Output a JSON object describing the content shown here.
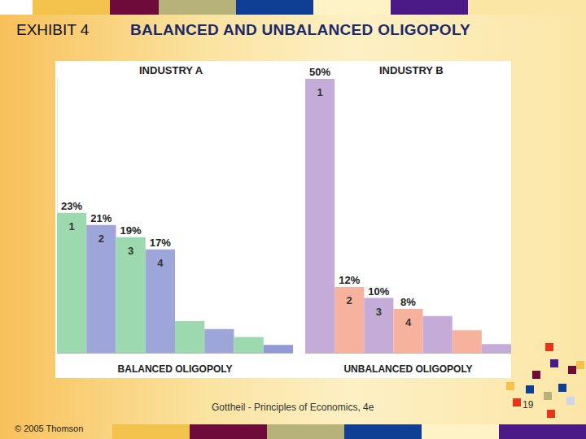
{
  "header": {
    "label": "EXHIBIT 4",
    "title": "BALANCED AND UNBALANCED OLIGOPOLY"
  },
  "footer": {
    "source": "Gottheil - Principles of Economics, 4e",
    "page": "19",
    "copyright": "© 2005 Thomson"
  },
  "chart_data": [
    {
      "type": "bar",
      "title": "INDUSTRY A",
      "xlabel": "BALANCED OLIGOPOLY",
      "categories": [
        "1",
        "2",
        "3",
        "4",
        null,
        null,
        null,
        null
      ],
      "values": [
        23,
        21,
        19,
        17,
        5.2,
        3.9,
        2.6,
        1.3
      ],
      "value_labels": [
        "23%",
        "21%",
        "19%",
        "17%",
        null,
        null,
        null,
        null
      ],
      "colors": [
        "#9dd9ae",
        "#9ea6d9",
        "#9dd9ae",
        "#9ea6d9",
        "#9dd9ae",
        "#9ea6d9",
        "#9dd9ae",
        "#8f9ad6"
      ],
      "ylim": [
        0,
        45
      ],
      "data_labels": true,
      "tick_labels": false
    },
    {
      "type": "bar",
      "title": "INDUSTRY B",
      "xlabel": "UNBALANCED OLIGOPOLY",
      "categories": [
        "1",
        "2",
        "3",
        "4",
        null,
        null,
        null
      ],
      "values": [
        50,
        12,
        10,
        8,
        6.7,
        4.1,
        1.6
      ],
      "value_labels": [
        "50%",
        "12%",
        "10%",
        "8%",
        null,
        null,
        null
      ],
      "colors": [
        "#c4abd8",
        "#f7b29e",
        "#c4abd8",
        "#f7b29e",
        "#c4abd8",
        "#f7b29e",
        "#c4abd8"
      ],
      "ylim": [
        0,
        50
      ],
      "data_labels": true,
      "tick_labels": false
    }
  ]
}
